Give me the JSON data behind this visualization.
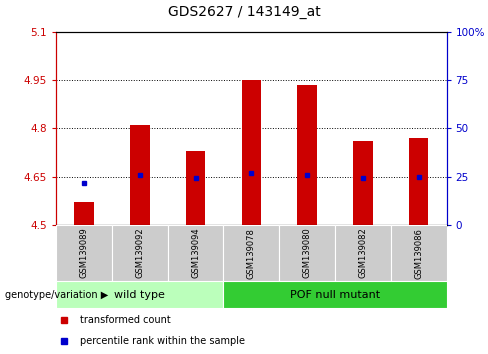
{
  "title": "GDS2627 / 143149_at",
  "samples": [
    "GSM139089",
    "GSM139092",
    "GSM139094",
    "GSM139078",
    "GSM139080",
    "GSM139082",
    "GSM139086"
  ],
  "bar_values": [
    4.57,
    4.81,
    4.73,
    4.95,
    4.935,
    4.76,
    4.77
  ],
  "bar_base": 4.5,
  "percentile_values": [
    4.63,
    4.655,
    4.645,
    4.66,
    4.655,
    4.645,
    4.648
  ],
  "ylim_left": [
    4.5,
    5.1
  ],
  "ylim_right": [
    0,
    100
  ],
  "yticks_left": [
    4.5,
    4.65,
    4.8,
    4.95,
    5.1
  ],
  "yticks_right": [
    0,
    25,
    50,
    75,
    100
  ],
  "ytick_labels_left": [
    "4.5",
    "4.65",
    "4.8",
    "4.95",
    "5.1"
  ],
  "ytick_labels_right": [
    "0",
    "25",
    "50",
    "75",
    "100%"
  ],
  "grid_lines": [
    4.65,
    4.8,
    4.95
  ],
  "bar_color": "#cc0000",
  "percentile_color": "#0000cc",
  "groups": [
    {
      "label": "wild type",
      "indices": [
        0,
        1,
        2
      ],
      "color": "#bbffbb"
    },
    {
      "label": "POF null mutant",
      "indices": [
        3,
        4,
        5,
        6
      ],
      "color": "#33cc33"
    }
  ],
  "sample_area_color": "#cccccc",
  "legend_items": [
    {
      "label": "transformed count",
      "color": "#cc0000"
    },
    {
      "label": "percentile rank within the sample",
      "color": "#0000cc"
    }
  ],
  "title_fontsize": 10,
  "tick_fontsize": 7.5,
  "sample_fontsize": 6,
  "group_fontsize": 8,
  "legend_fontsize": 7
}
